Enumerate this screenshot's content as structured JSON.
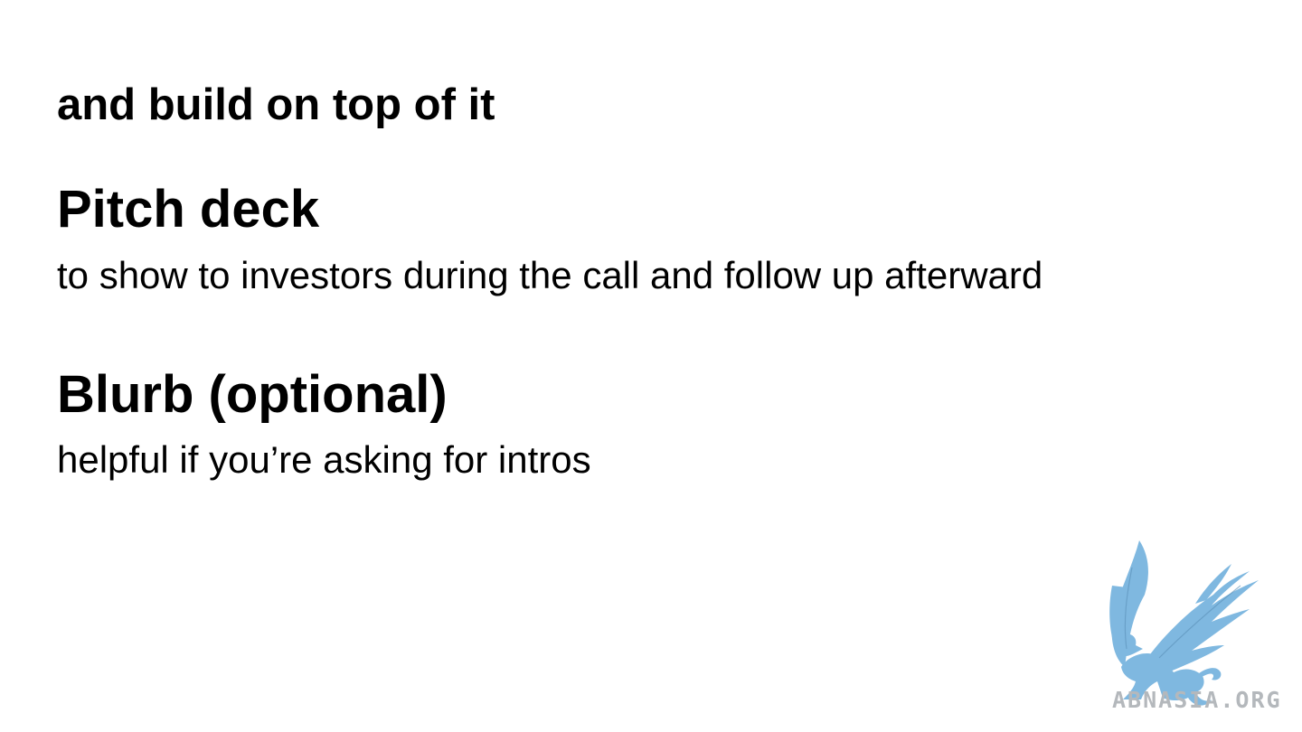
{
  "slide": {
    "intro": "and build on top of it",
    "sections": [
      {
        "title": "Pitch deck",
        "description": "to show to investors during the call and follow up afterward"
      },
      {
        "title": "Blurb (optional)",
        "description": "helpful if you’re asking for intros"
      }
    ]
  },
  "watermark": {
    "icon": "griffin-logo-icon",
    "text": "ABNASIA.ORG",
    "color": "#7fb8e0",
    "text_color": "#b4b8bc"
  }
}
